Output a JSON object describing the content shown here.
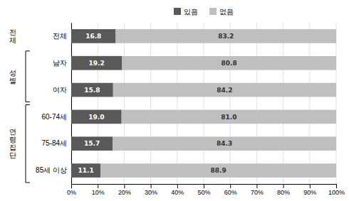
{
  "chart_data": {
    "type": "bar",
    "orientation": "horizontal",
    "stacked": true,
    "data_labels": true,
    "grid": true,
    "legend": "top",
    "categories": [
      "전체",
      "남자",
      "여자",
      "60-74세",
      "75-84세",
      "85세 이상"
    ],
    "series": [
      {
        "name": "있음",
        "color": "#595959",
        "values": [
          16.8,
          19.2,
          15.8,
          19.0,
          15.7,
          11.1
        ],
        "value_labels": [
          "16.8",
          "19.2",
          "15.8",
          "19.0",
          "15.7",
          "11.1"
        ]
      },
      {
        "name": "없음",
        "color": "#bfbfbf",
        "values": [
          83.2,
          80.8,
          84.2,
          81.0,
          84.3,
          88.9
        ],
        "value_labels": [
          "83.2",
          "80.8",
          "84.2",
          "81.0",
          "84.3",
          "88.9"
        ]
      }
    ],
    "xlim": [
      0,
      100
    ],
    "xticks": [
      {
        "value": 0,
        "label": "0%"
      },
      {
        "value": 10,
        "label": "10%"
      },
      {
        "value": 20,
        "label": "20%"
      },
      {
        "value": 30,
        "label": "30%"
      },
      {
        "value": 40,
        "label": "40%"
      },
      {
        "value": 50,
        "label": "50%"
      },
      {
        "value": 60,
        "label": "60%"
      },
      {
        "value": 70,
        "label": "70%"
      },
      {
        "value": 80,
        "label": "80%"
      },
      {
        "value": 90,
        "label": "90%"
      },
      {
        "value": 100,
        "label": "100%"
      }
    ],
    "annotations": [
      {
        "text": "전\n체",
        "categories": [
          "전체"
        ]
      },
      {
        "text": "성\n별",
        "categories": [
          "남자",
          "여자"
        ]
      },
      {
        "text": "연\n령\n집\n단",
        "categories": [
          "60-74세",
          "75-84세",
          "85세 이상"
        ]
      }
    ]
  }
}
